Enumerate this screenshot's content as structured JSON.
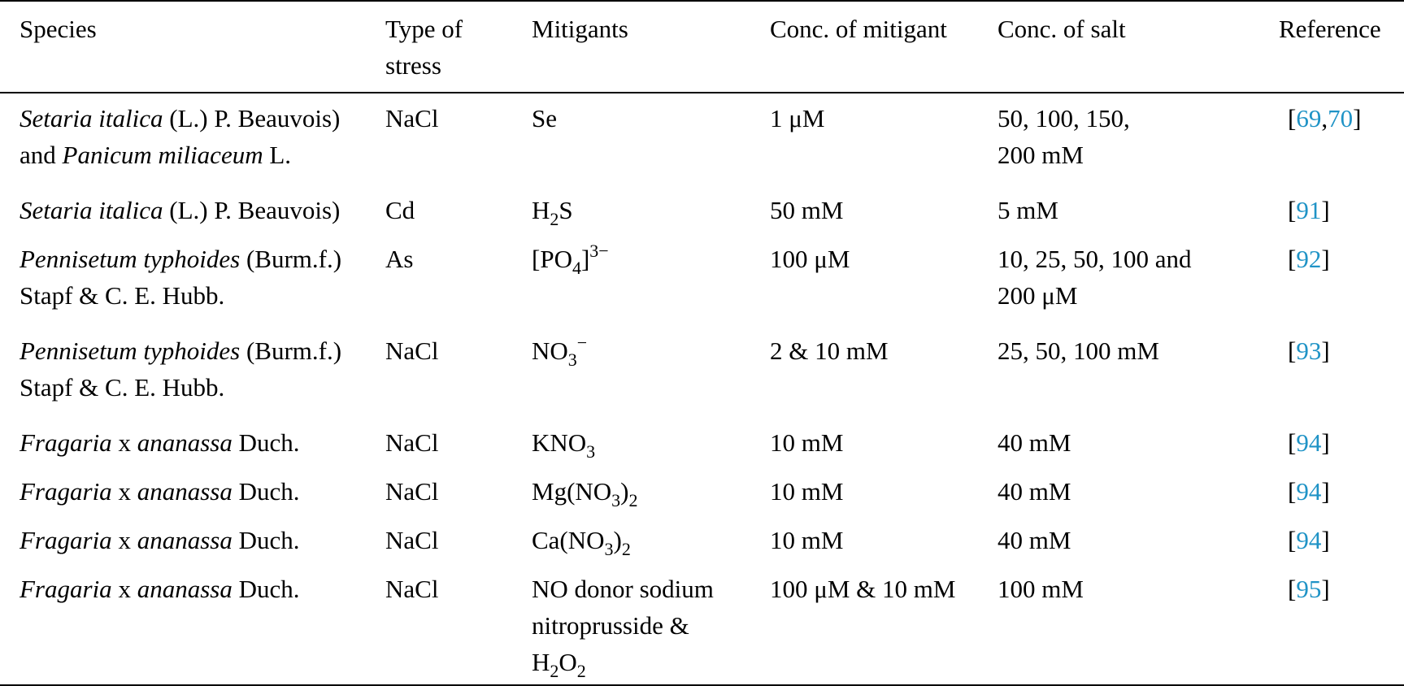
{
  "table": {
    "headers": {
      "species": "Species",
      "stress_line1": "Type of",
      "stress_line2": "stress",
      "mitigants": "Mitigants",
      "conc_mitigant": "Conc. of mitigant",
      "conc_salt": "Conc. of salt",
      "reference": "Reference"
    },
    "rows": [
      {
        "species": {
          "i1": "Setaria italica",
          "t1": " (L.) P. Beauvois)",
          "t2": "and ",
          "i2": "Panicum miliaceum",
          "t3": " L."
        },
        "stress": "NaCl",
        "mitigant": {
          "base": "Se"
        },
        "conc_mitigant": "1 μM",
        "conc_salt_l1": "50, 100, 150,",
        "conc_salt_l2": "200 mM",
        "ref_open": "[",
        "ref1": "69",
        "ref_sep": ",",
        "ref2": "70",
        "ref_close": "]"
      },
      {
        "species": {
          "i1": "Setaria italica",
          "t1": " (L.) P. Beauvois)"
        },
        "stress": "Cd",
        "mitigant": {
          "a": "H",
          "sub1": "2",
          "b": "S"
        },
        "conc_mitigant": "50 mM",
        "conc_salt_l1": "5 mM",
        "ref_open": "[",
        "ref1": "91",
        "ref_close": "]"
      },
      {
        "species": {
          "i1": "Pennisetum typhoides",
          "t1": " (Burm.f.)",
          "t2": "Stapf & C. E. Hubb."
        },
        "stress": "As",
        "mitigant": {
          "a": "[PO",
          "sub1": "4",
          "b": "]",
          "sup1": "3−"
        },
        "conc_mitigant": "100 μM",
        "conc_salt_l1": "10, 25, 50, 100 and",
        "conc_salt_l2": "200 μM",
        "ref_open": "[",
        "ref1": "92",
        "ref_close": "]"
      },
      {
        "species": {
          "i1": "Pennisetum typhoides",
          "t1": " (Burm.f.)",
          "t2": "Stapf & C. E. Hubb."
        },
        "stress": "NaCl",
        "mitigant": {
          "a": "NO",
          "sub1": "3",
          "sup1": "−"
        },
        "conc_mitigant": "2 & 10 mM",
        "conc_salt_l1": "25, 50, 100 mM",
        "ref_open": "[",
        "ref1": "93",
        "ref_close": "]"
      },
      {
        "species": {
          "i1": "Fragaria",
          "t1": " x ",
          "i2": "ananassa",
          "t2": " Duch."
        },
        "stress": "NaCl",
        "mitigant": {
          "a": "KNO",
          "sub1": "3"
        },
        "conc_mitigant": "10 mM",
        "conc_salt_l1": "40 mM",
        "ref_open": "[",
        "ref1": "94",
        "ref_close": "]"
      },
      {
        "species": {
          "i1": "Fragaria",
          "t1": " x ",
          "i2": "ananassa",
          "t2": " Duch."
        },
        "stress": "NaCl",
        "mitigant": {
          "a": "Mg(NO",
          "sub1": "3",
          "b": ")",
          "sub2": "2"
        },
        "conc_mitigant": "10 mM",
        "conc_salt_l1": "40 mM",
        "ref_open": "[",
        "ref1": "94",
        "ref_close": "]"
      },
      {
        "species": {
          "i1": "Fragaria",
          "t1": " x ",
          "i2": "ananassa",
          "t2": " Duch."
        },
        "stress": "NaCl",
        "mitigant": {
          "a": "Ca(NO",
          "sub1": "3",
          "b": ")",
          "sub2": "2"
        },
        "conc_mitigant": "10 mM",
        "conc_salt_l1": "40 mM",
        "ref_open": "[",
        "ref1": "94",
        "ref_close": "]"
      },
      {
        "species": {
          "i1": "Fragaria",
          "t1": " x ",
          "i2": "ananassa",
          "t2": " Duch."
        },
        "stress": "NaCl",
        "mitigant": {
          "l1": "NO donor sodium",
          "l2": "nitroprusside &",
          "a": "H",
          "sub1": "2",
          "b": "O",
          "sub2": "2"
        },
        "conc_mitigant": "100 μM & 10 mM",
        "conc_salt_l1": "100 mM",
        "ref_open": "[",
        "ref1": "95",
        "ref_close": "]"
      }
    ]
  },
  "colors": {
    "reference_link": "#1f93c6",
    "text": "#000000",
    "rule": "#000000"
  }
}
